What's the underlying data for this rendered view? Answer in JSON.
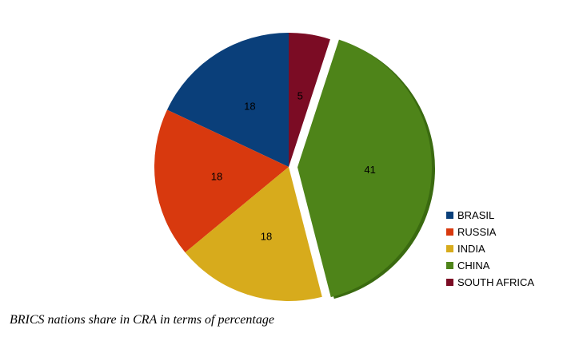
{
  "caption": "BRICS nations share in CRA in terms of percentage",
  "chart_data": {
    "type": "pie",
    "title": "",
    "categories": [
      "BRASIL",
      "RUSSIA",
      "INDIA",
      "CHINA",
      "SOUTH AFRICA"
    ],
    "values": [
      18,
      18,
      18,
      41,
      5
    ],
    "colors": [
      "#0a3f7a",
      "#d8390e",
      "#d7ab1c",
      "#4e8419",
      "#7b0c24"
    ],
    "data_labels": [
      "18",
      "18",
      "18",
      "41",
      "5"
    ],
    "legend_position": "right",
    "start": "top, slices drawn counter-clockwise beginning with BRASIL",
    "exploded_slice": "CHINA"
  }
}
